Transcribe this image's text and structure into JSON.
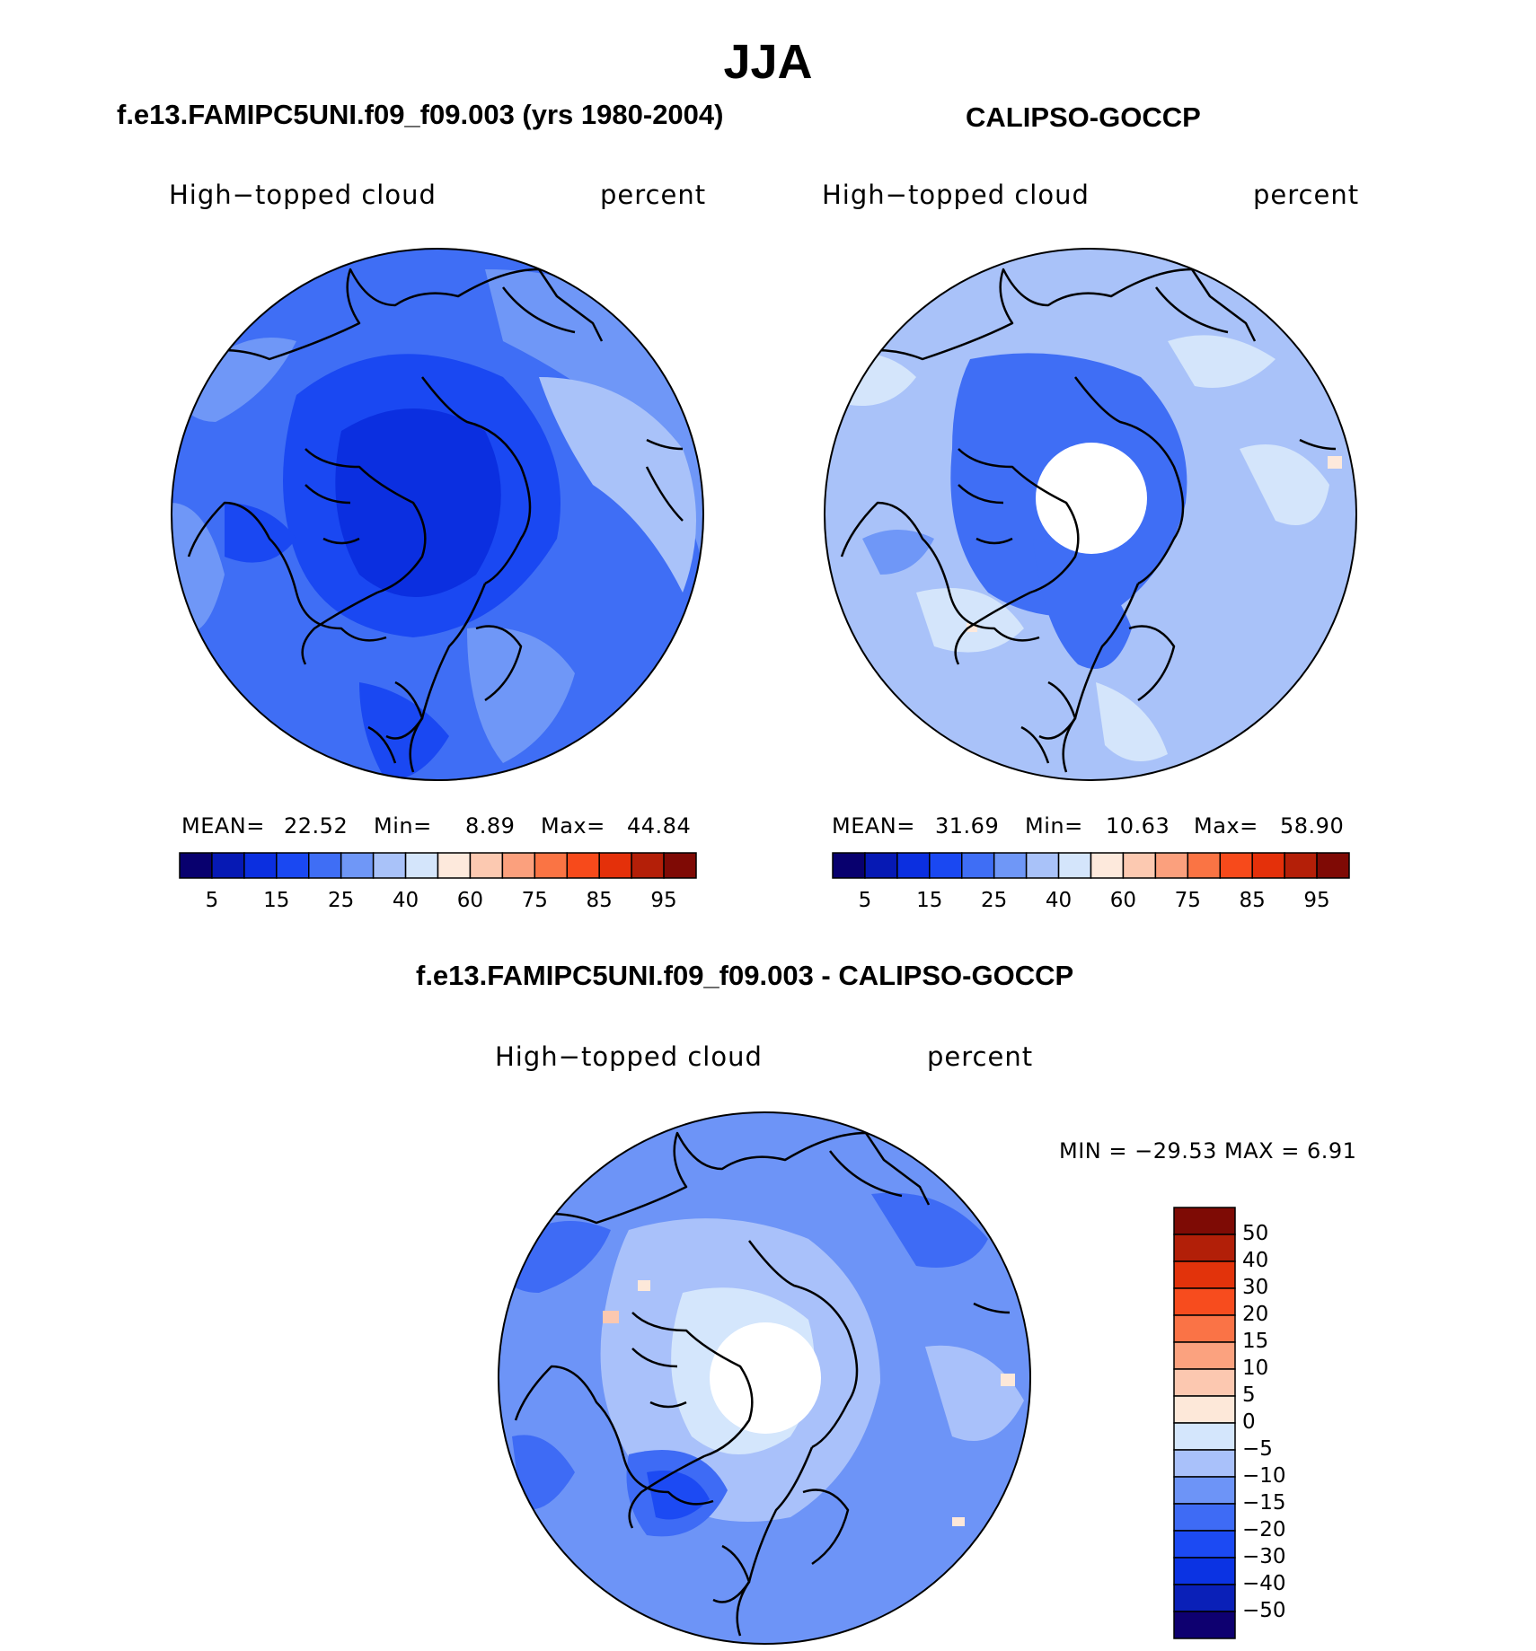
{
  "title": "JJA",
  "colors": {
    "model_scale": [
      "#08006e",
      "#0619b4",
      "#0b2fe0",
      "#1a48f2",
      "#3f6ef5",
      "#6f97f7",
      "#a9c2f9",
      "#d4e5fb",
      "#fde9dc",
      "#fcc9b1",
      "#fba07d",
      "#fa7444",
      "#f74a1b",
      "#e4300a",
      "#b41f08",
      "#7f0a05"
    ],
    "diff_scale": [
      "#0e0070",
      "#0a20b8",
      "#0b33e3",
      "#1c4af3",
      "#3e6bf5",
      "#6d94f7",
      "#a9c1fa",
      "#d4e6fc",
      "#fde8d9",
      "#fcc8b0",
      "#fba27f",
      "#fa7346",
      "#f74c1e",
      "#e2330b",
      "#b21f08",
      "#7e0b05"
    ],
    "land_outline": "#000000"
  },
  "panels": [
    {
      "id": "model",
      "case_title": "f.e13.FAMIPC5UNI.f09_f09.003 (yrs 1980-2004)",
      "variable": "High−topped cloud",
      "units": "percent",
      "stats": {
        "mean_label": "MEAN=",
        "mean": "22.52",
        "min_label": "Min=",
        "min": "8.89",
        "max_label": "Max=",
        "max": "44.84"
      },
      "colorbar_ticks": [
        "5",
        "15",
        "25",
        "40",
        "60",
        "75",
        "85",
        "95"
      ]
    },
    {
      "id": "obs",
      "case_title": "CALIPSO-GOCCP",
      "variable": "High−topped cloud",
      "units": "percent",
      "stats": {
        "mean_label": "MEAN=",
        "mean": "31.69",
        "min_label": "Min=",
        "min": "10.63",
        "max_label": "Max=",
        "max": "58.90"
      },
      "colorbar_ticks": [
        "5",
        "15",
        "25",
        "40",
        "60",
        "75",
        "85",
        "95"
      ]
    }
  ],
  "difference": {
    "case_title": "f.e13.FAMIPC5UNI.f09_f09.003 - CALIPSO-GOCCP",
    "variable": "High−topped cloud",
    "units": "percent",
    "minmax": "MIN = −29.53 MAX =    6.91",
    "colorbar_ticks": [
      "50",
      "40",
      "30",
      "20",
      "15",
      "10",
      "5",
      "0",
      "−5",
      "−10",
      "−15",
      "−20",
      "−30",
      "−40",
      "−50"
    ]
  }
}
